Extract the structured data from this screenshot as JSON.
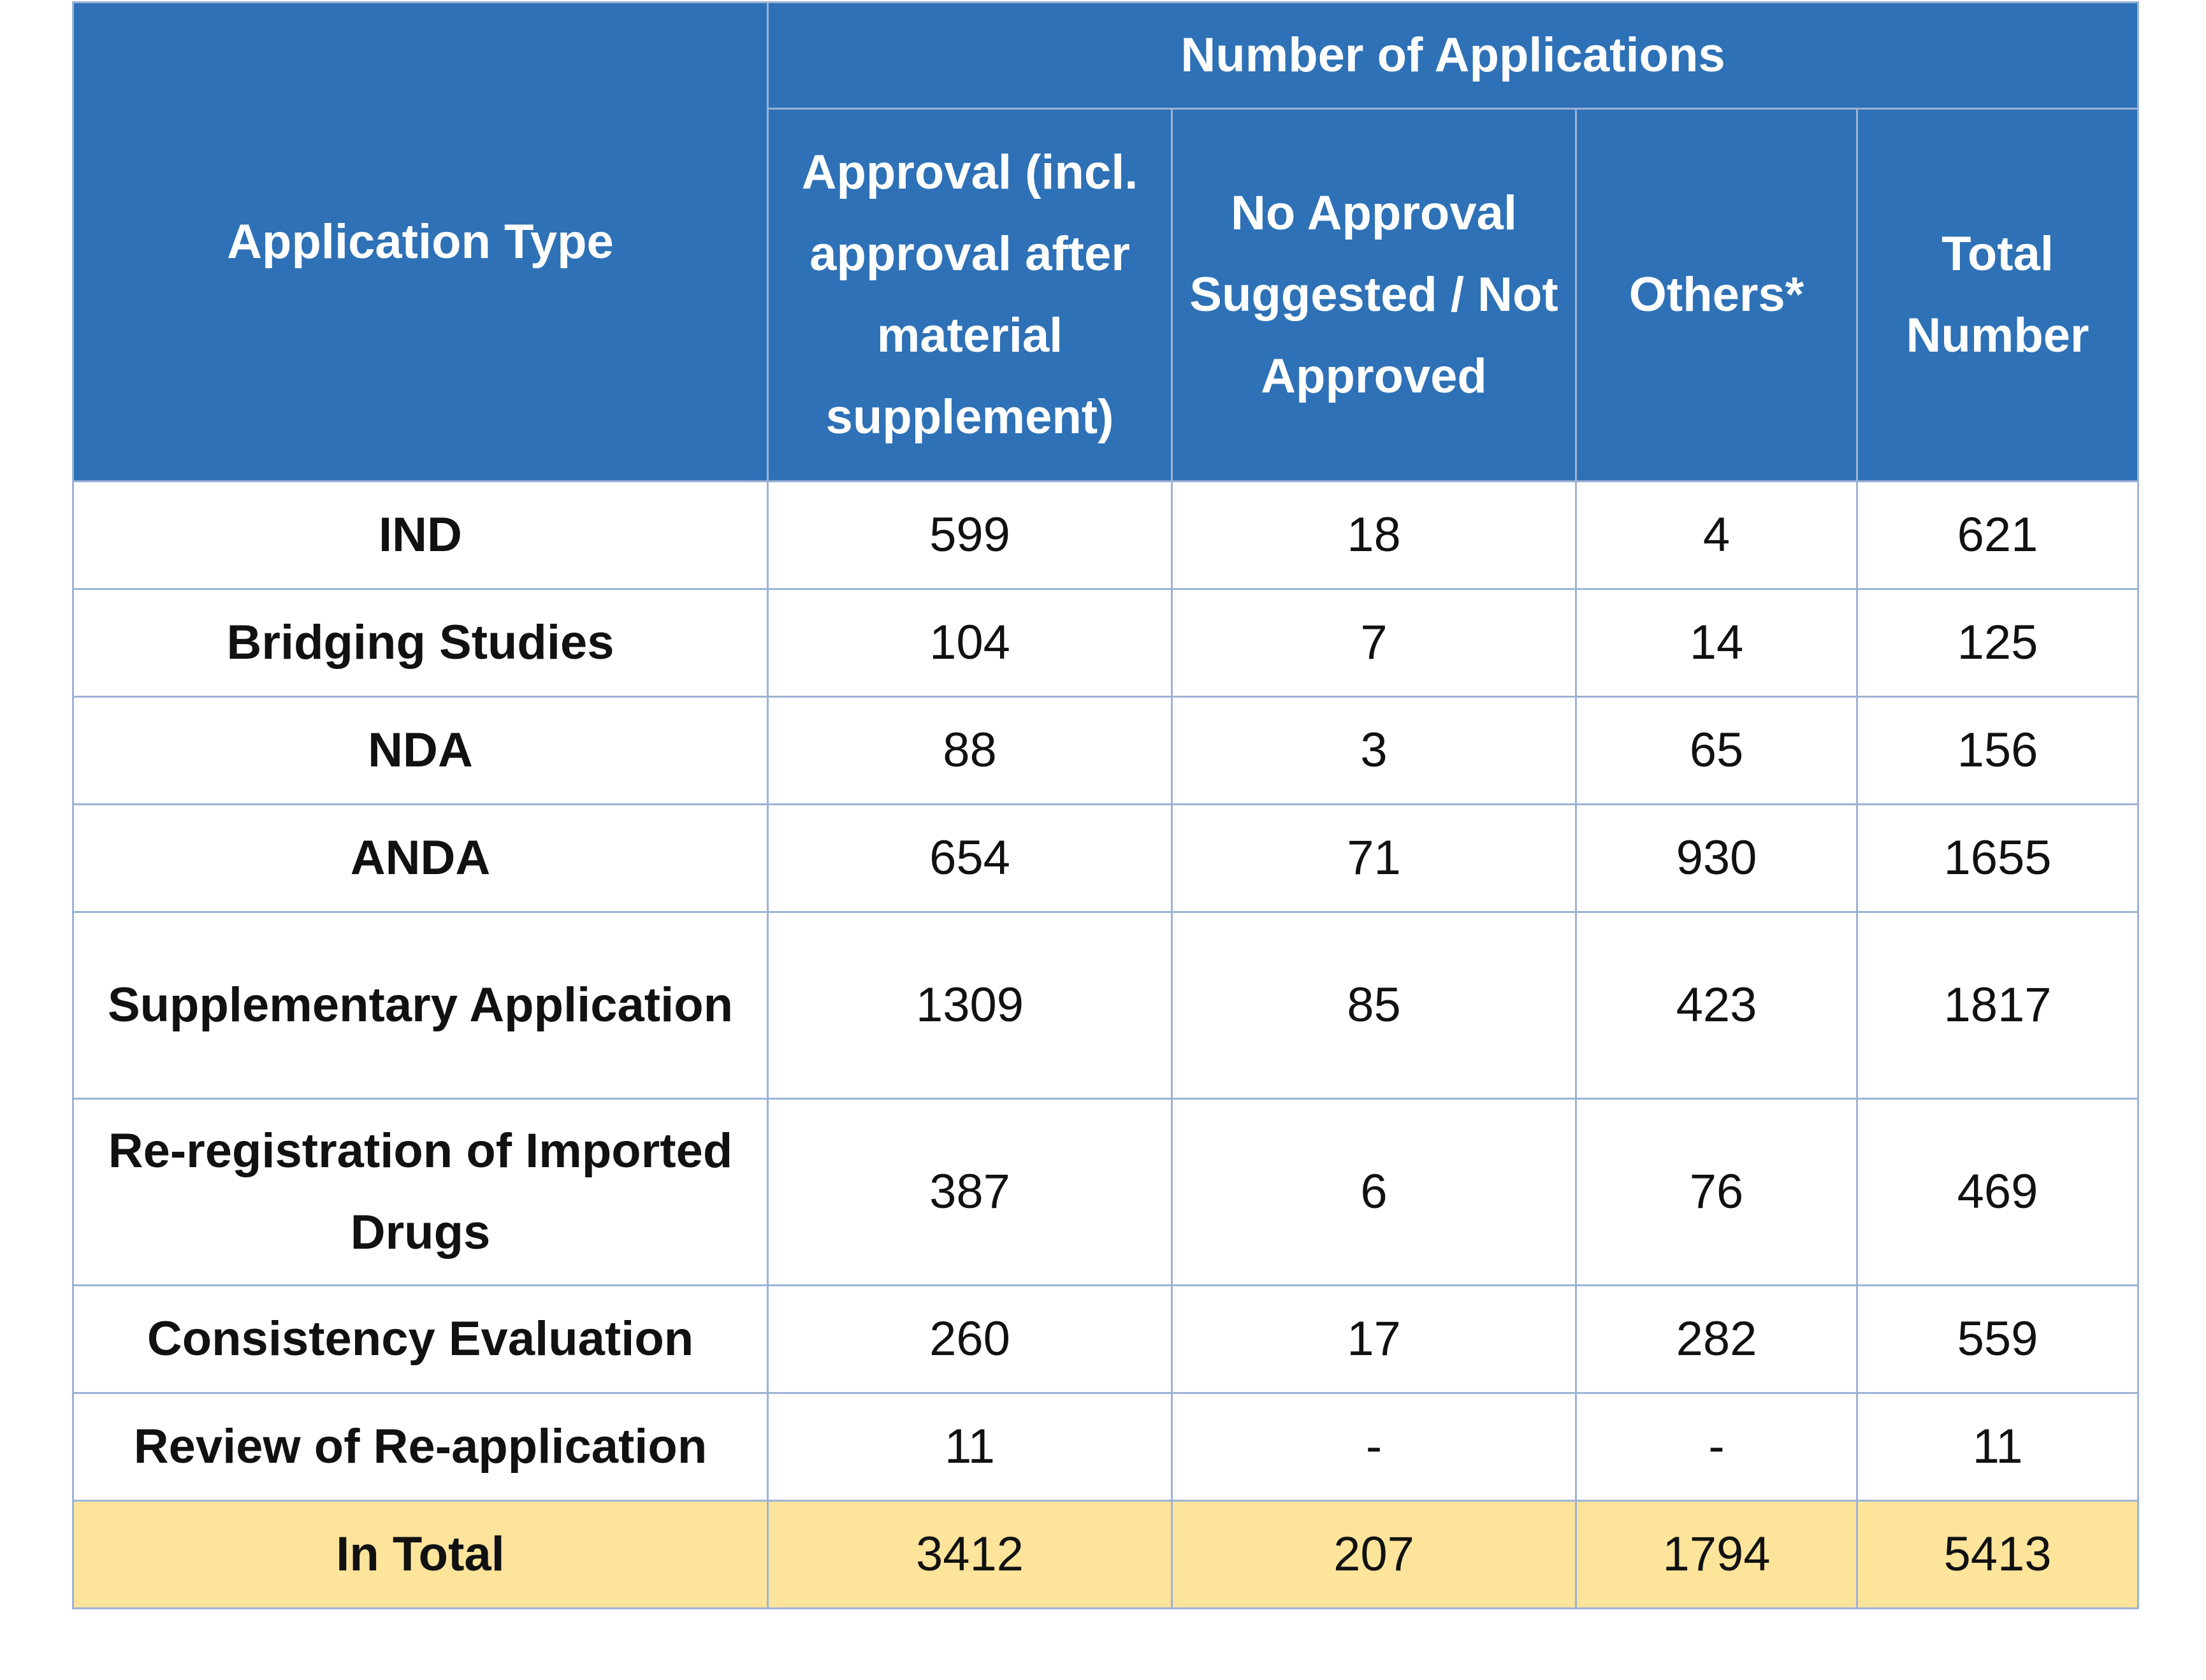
{
  "table": {
    "header": {
      "type_label": "Application Type",
      "group_label": "Number of Applications",
      "columns": [
        "Approval (incl. approval after material supplement)",
        "No Approval Suggested / Not Approved",
        "Others*",
        "Total Number"
      ]
    },
    "rows": [
      {
        "type": "IND",
        "approval": "599",
        "no_approval": "18",
        "others": "4",
        "total": "621"
      },
      {
        "type": "Bridging Studies",
        "approval": "104",
        "no_approval": "7",
        "others": "14",
        "total": "125"
      },
      {
        "type": "NDA",
        "approval": "88",
        "no_approval": "3",
        "others": "65",
        "total": "156"
      },
      {
        "type": "ANDA",
        "approval": "654",
        "no_approval": "71",
        "others": "930",
        "total": "1655"
      },
      {
        "type": "Supplementary Application",
        "approval": "1309",
        "no_approval": "85",
        "others": "423",
        "total": "1817"
      },
      {
        "type": "Re-registration of Imported Drugs",
        "approval": "387",
        "no_approval": "6",
        "others": "76",
        "total": "469"
      },
      {
        "type": "Consistency Evaluation",
        "approval": "260",
        "no_approval": "17",
        "others": "282",
        "total": "559"
      },
      {
        "type": "Review of Re-application",
        "approval": "11",
        "no_approval": "-",
        "others": "-",
        "total": "11"
      }
    ],
    "total_row": {
      "type": "In Total",
      "approval": "3412",
      "no_approval": "207",
      "others": "1794",
      "total": "5413"
    },
    "colors": {
      "header_bg": "#2e71b6",
      "total_bg": "#fde49b",
      "border": "#9db3d6"
    }
  }
}
